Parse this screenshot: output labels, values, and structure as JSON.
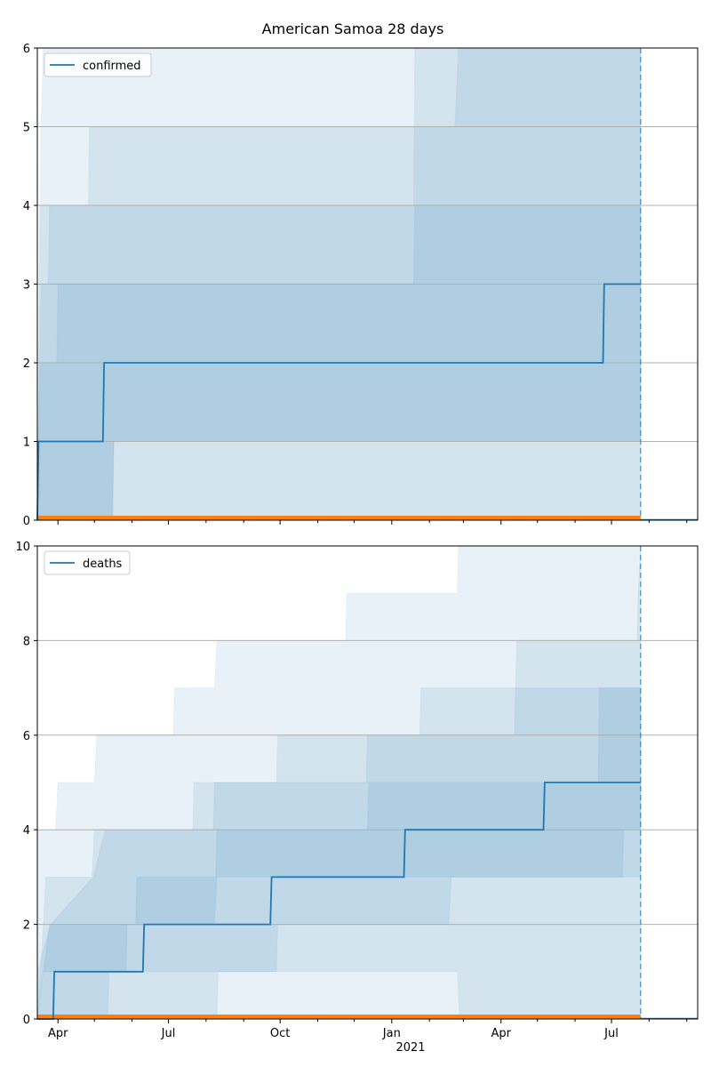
{
  "figure_title": "American Samoa 28 days",
  "x_year_label": "2021",
  "chart_data": [
    {
      "type": "line",
      "name": "confirmed",
      "legend": [
        "confirmed"
      ],
      "x_ticks": [
        "Apr",
        "Jul",
        "Oct",
        "Jan",
        "Apr",
        "Jul"
      ],
      "x_range": [
        "2020-03-15",
        "2021-09-10"
      ],
      "ylim": [
        0,
        6
      ],
      "y_ticks": [
        0,
        1,
        2,
        3,
        4,
        5,
        6
      ],
      "grid": "horizontal",
      "legend_position": "upper-left",
      "series": [
        {
          "name": "confirmed",
          "color": "#1f77b4",
          "points": [
            [
              "2020-03-15",
              0
            ],
            [
              "2020-03-16",
              1
            ],
            [
              "2020-05-08",
              1
            ],
            [
              "2020-05-09",
              2
            ],
            [
              "2021-06-24",
              2
            ],
            [
              "2021-06-25",
              3
            ],
            [
              "2021-07-25",
              3
            ]
          ]
        }
      ],
      "baseline_color": "#ff7f0e",
      "forecast_start": "2021-07-25",
      "bands": [
        {
          "opacity": 0.1,
          "lower": [
            [
              "2020-03-15",
              0
            ],
            [
              "2021-07-25",
              0
            ]
          ],
          "upper": [
            [
              "2020-03-15",
              0
            ],
            [
              "2020-03-18",
              5
            ],
            [
              "2020-03-20",
              6
            ],
            [
              "2021-07-25",
              6
            ]
          ]
        },
        {
          "opacity": 0.1,
          "lower": [
            [
              "2020-03-15",
              0
            ],
            [
              "2021-07-25",
              0
            ]
          ],
          "upper": [
            [
              "2020-03-15",
              0
            ],
            [
              "2020-03-17",
              4
            ],
            [
              "2020-04-26",
              4
            ],
            [
              "2020-04-27",
              5
            ],
            [
              "2021-02-22",
              5
            ],
            [
              "2021-02-25",
              6
            ],
            [
              "2021-07-25",
              6
            ]
          ]
        },
        {
          "opacity": 0.1,
          "lower": [
            [
              "2020-03-15",
              0
            ],
            [
              "2020-05-16",
              0
            ],
            [
              "2020-05-17",
              1
            ],
            [
              "2021-07-25",
              1
            ]
          ],
          "upper": [
            [
              "2020-03-15",
              0
            ],
            [
              "2020-03-18",
              3
            ],
            [
              "2020-03-24",
              3
            ],
            [
              "2020-03-25",
              4
            ],
            [
              "2021-01-19",
              4
            ],
            [
              "2021-01-20",
              6
            ],
            [
              "2021-07-25",
              6
            ]
          ]
        },
        {
          "opacity": 0.1,
          "lower": [
            [
              "2020-03-15",
              0
            ],
            [
              "2020-05-16",
              0
            ],
            [
              "2020-05-17",
              1
            ],
            [
              "2021-07-25",
              1
            ]
          ],
          "upper": [
            [
              "2020-03-15",
              0
            ],
            [
              "2020-03-17",
              2
            ],
            [
              "2020-03-31",
              2
            ],
            [
              "2020-04-01",
              3
            ],
            [
              "2021-01-19",
              3
            ],
            [
              "2021-01-20",
              4
            ],
            [
              "2021-07-25",
              4
            ]
          ]
        }
      ]
    },
    {
      "type": "line",
      "name": "deaths",
      "legend": [
        "deaths"
      ],
      "x_ticks": [
        "Apr",
        "Jul",
        "Oct",
        "Jan",
        "Apr",
        "Jul"
      ],
      "x_range": [
        "2020-03-15",
        "2021-09-10"
      ],
      "ylim": [
        0,
        10
      ],
      "y_ticks": [
        0,
        2,
        4,
        6,
        8,
        10
      ],
      "grid": "horizontal",
      "legend_position": "upper-left",
      "series": [
        {
          "name": "deaths",
          "color": "#1f77b4",
          "points": [
            [
              "2020-03-15",
              0
            ],
            [
              "2020-03-28",
              0
            ],
            [
              "2020-03-29",
              1
            ],
            [
              "2020-06-10",
              1
            ],
            [
              "2020-06-11",
              2
            ],
            [
              "2020-09-23",
              2
            ],
            [
              "2020-09-24",
              3
            ],
            [
              "2021-01-11",
              3
            ],
            [
              "2021-01-12",
              4
            ],
            [
              "2021-05-06",
              4
            ],
            [
              "2021-05-07",
              5
            ],
            [
              "2021-07-25",
              5
            ]
          ]
        }
      ],
      "baseline_color": "#ff7f0e",
      "forecast_start": "2021-07-25",
      "bands": [
        {
          "opacity": 0.1,
          "lower": [
            [
              "2020-03-15",
              0
            ],
            [
              "2021-07-25",
              0
            ]
          ],
          "upper": [
            [
              "2020-03-15",
              4
            ],
            [
              "2020-03-30",
              4
            ],
            [
              "2020-04-01",
              5
            ],
            [
              "2020-05-01",
              5
            ],
            [
              "2020-05-03",
              6
            ],
            [
              "2020-07-05",
              6
            ],
            [
              "2020-07-06",
              7
            ],
            [
              "2020-08-08",
              7
            ],
            [
              "2020-08-10",
              8
            ],
            [
              "2020-11-24",
              8
            ],
            [
              "2020-11-25",
              9
            ],
            [
              "2021-02-24",
              9
            ],
            [
              "2021-02-25",
              10
            ],
            [
              "2021-07-25",
              10
            ]
          ]
        },
        {
          "opacity": 0.1,
          "lower": [
            [
              "2020-03-15",
              0
            ],
            [
              "2020-08-10",
              0
            ],
            [
              "2020-08-11",
              1
            ],
            [
              "2021-02-24",
              1
            ],
            [
              "2021-02-26",
              0
            ],
            [
              "2021-07-25",
              0
            ]
          ],
          "upper": [
            [
              "2020-03-15",
              1
            ],
            [
              "2020-03-26",
              2
            ],
            [
              "2020-04-30",
              3
            ],
            [
              "2020-05-10",
              4
            ],
            [
              "2020-07-21",
              4
            ],
            [
              "2020-07-22",
              5
            ],
            [
              "2020-09-28",
              5
            ],
            [
              "2020-09-29",
              6
            ],
            [
              "2021-01-24",
              6
            ],
            [
              "2021-01-25",
              7
            ],
            [
              "2021-04-13",
              7
            ],
            [
              "2021-04-14",
              8
            ],
            [
              "2021-07-22",
              8
            ],
            [
              "2021-07-23",
              9
            ],
            [
              "2021-07-25",
              10
            ]
          ]
        },
        {
          "opacity": 0.1,
          "lower": [
            [
              "2020-03-15",
              0
            ],
            [
              "2020-05-12",
              0
            ],
            [
              "2020-05-13",
              1
            ],
            [
              "2020-09-28",
              1
            ],
            [
              "2020-09-29",
              2
            ],
            [
              "2021-02-17",
              2
            ],
            [
              "2021-02-19",
              3
            ],
            [
              "2021-07-25",
              3
            ]
          ],
          "upper": [
            [
              "2020-03-15",
              0
            ],
            [
              "2020-03-20",
              2
            ],
            [
              "2020-03-22",
              3
            ],
            [
              "2020-04-29",
              3
            ],
            [
              "2020-05-01",
              4
            ],
            [
              "2020-08-07",
              4
            ],
            [
              "2020-08-08",
              5
            ],
            [
              "2020-12-11",
              5
            ],
            [
              "2020-12-12",
              6
            ],
            [
              "2021-04-12",
              6
            ],
            [
              "2021-04-13",
              7
            ],
            [
              "2021-07-25",
              7
            ]
          ]
        },
        {
          "opacity": 0.1,
          "lower": [
            [
              "2020-03-15",
              0
            ],
            [
              "2020-03-20",
              1
            ],
            [
              "2020-05-27",
              1
            ],
            [
              "2020-05-28",
              2
            ],
            [
              "2020-08-08",
              2
            ],
            [
              "2020-08-10",
              3
            ],
            [
              "2021-07-10",
              3
            ],
            [
              "2021-07-11",
              4
            ],
            [
              "2021-07-25",
              4
            ]
          ],
          "upper": [
            [
              "2020-03-15",
              0
            ],
            [
              "2020-03-25",
              2
            ],
            [
              "2020-06-04",
              2
            ],
            [
              "2020-06-05",
              3
            ],
            [
              "2020-08-09",
              3
            ],
            [
              "2020-08-10",
              4
            ],
            [
              "2020-12-12",
              4
            ],
            [
              "2020-12-13",
              5
            ],
            [
              "2021-06-20",
              5
            ],
            [
              "2021-06-21",
              7
            ],
            [
              "2021-07-25",
              7
            ]
          ]
        }
      ]
    }
  ]
}
